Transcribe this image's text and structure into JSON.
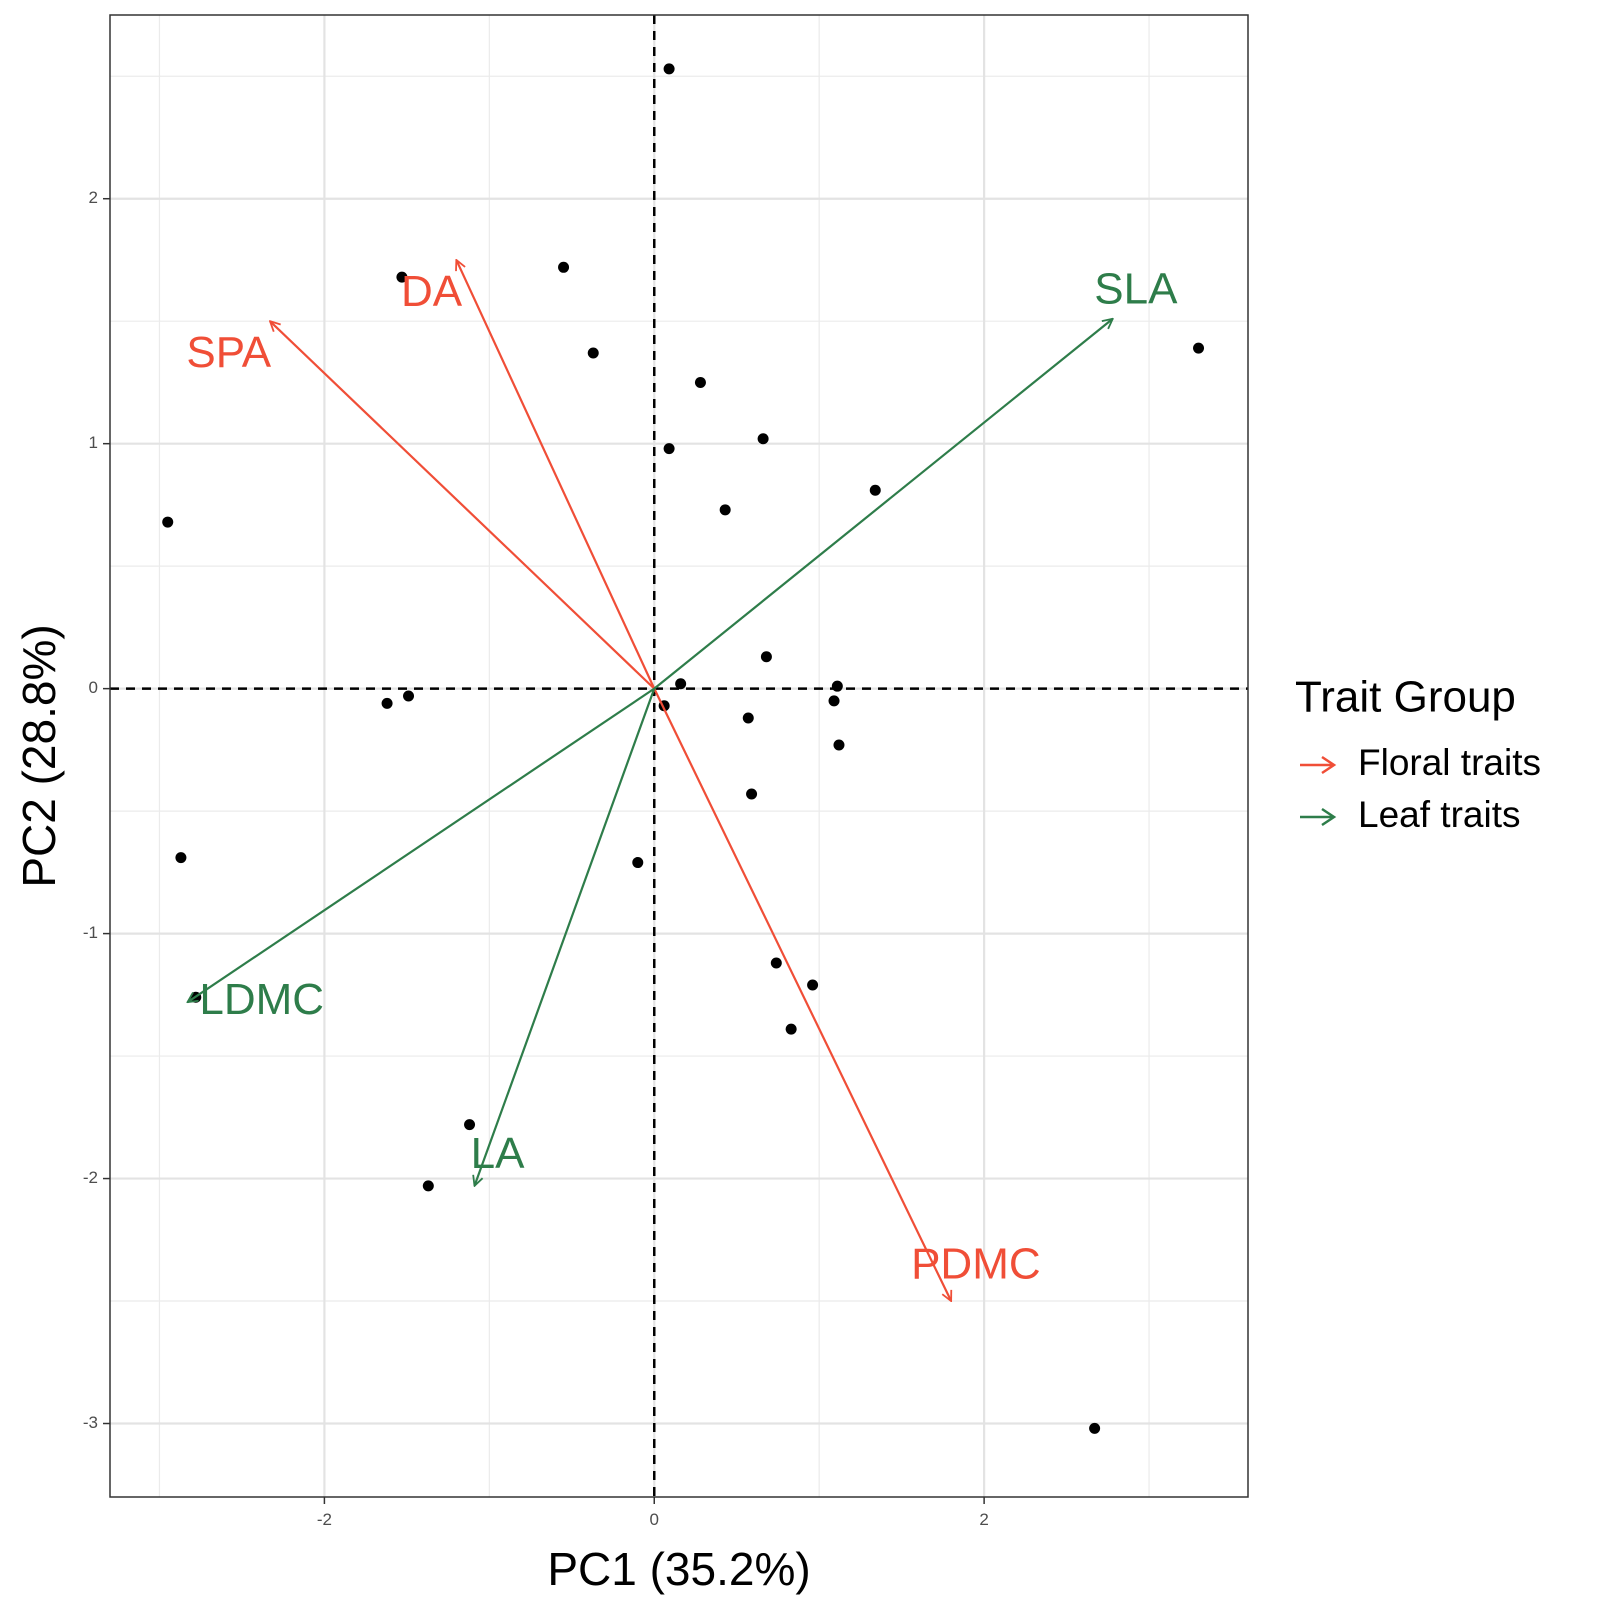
{
  "chart_data": {
    "type": "scatter",
    "subtype": "pca-biplot",
    "xlabel": "PC1 (35.2%)",
    "ylabel": "PC2 (28.8%)",
    "xlim": [
      -3.3,
      3.6
    ],
    "ylim": [
      -3.3,
      2.75
    ],
    "x_ticks": [
      -2,
      0,
      2
    ],
    "y_ticks": [
      -3,
      -2,
      -1,
      0,
      1,
      2
    ],
    "grid": true,
    "reference_lines": {
      "x": 0,
      "y": 0,
      "style": "dashed"
    },
    "points": [
      {
        "x": 0.09,
        "y": 2.53
      },
      {
        "x": -0.55,
        "y": 1.72
      },
      {
        "x": -1.53,
        "y": 1.68
      },
      {
        "x": -0.37,
        "y": 1.37
      },
      {
        "x": 3.3,
        "y": 1.39
      },
      {
        "x": 0.28,
        "y": 1.25
      },
      {
        "x": 0.66,
        "y": 1.02
      },
      {
        "x": 0.09,
        "y": 0.98
      },
      {
        "x": 1.34,
        "y": 0.81
      },
      {
        "x": 0.43,
        "y": 0.73
      },
      {
        "x": -2.95,
        "y": 0.68
      },
      {
        "x": 0.68,
        "y": 0.13
      },
      {
        "x": 0.16,
        "y": 0.02
      },
      {
        "x": 1.11,
        "y": 0.01
      },
      {
        "x": 1.09,
        "y": -0.05
      },
      {
        "x": 0.06,
        "y": -0.07
      },
      {
        "x": -1.62,
        "y": -0.06
      },
      {
        "x": -1.49,
        "y": -0.03
      },
      {
        "x": 0.57,
        "y": -0.12
      },
      {
        "x": 1.12,
        "y": -0.23
      },
      {
        "x": 0.59,
        "y": -0.43
      },
      {
        "x": -0.1,
        "y": -0.71
      },
      {
        "x": -2.87,
        "y": -0.69
      },
      {
        "x": 0.74,
        "y": -1.12
      },
      {
        "x": 0.96,
        "y": -1.21
      },
      {
        "x": 0.83,
        "y": -1.39
      },
      {
        "x": -2.78,
        "y": -1.26
      },
      {
        "x": -1.12,
        "y": -1.78
      },
      {
        "x": -1.37,
        "y": -2.03
      },
      {
        "x": 2.67,
        "y": -3.02
      }
    ],
    "vectors": [
      {
        "label": "DA",
        "x": -1.2,
        "y": 1.75,
        "group": "Floral traits",
        "label_x": -1.35,
        "label_y": 1.61
      },
      {
        "label": "SPA",
        "x": -2.33,
        "y": 1.5,
        "group": "Floral traits",
        "label_x": -2.58,
        "label_y": 1.36
      },
      {
        "label": "PDMC",
        "x": 1.8,
        "y": -2.5,
        "group": "Floral traits",
        "label_x": 1.95,
        "label_y": -2.36
      },
      {
        "label": "SLA",
        "x": 2.78,
        "y": 1.51,
        "group": "Leaf traits",
        "label_x": 2.92,
        "label_y": 1.62
      },
      {
        "label": "LDMC",
        "x": -2.83,
        "y": -1.28,
        "group": "Leaf traits",
        "label_x": -2.38,
        "label_y": -1.28
      },
      {
        "label": "LA",
        "x": -1.09,
        "y": -2.03,
        "group": "Leaf traits",
        "label_x": -0.95,
        "label_y": -1.91
      }
    ],
    "legend": {
      "title": "Trait Group",
      "position": "right",
      "entries": [
        {
          "name": "Floral traits",
          "color": "#f04e37"
        },
        {
          "name": "Leaf traits",
          "color": "#2e7d4a"
        }
      ]
    },
    "colors": {
      "Floral traits": "#f04e37",
      "Leaf traits": "#2e7d4a"
    }
  }
}
